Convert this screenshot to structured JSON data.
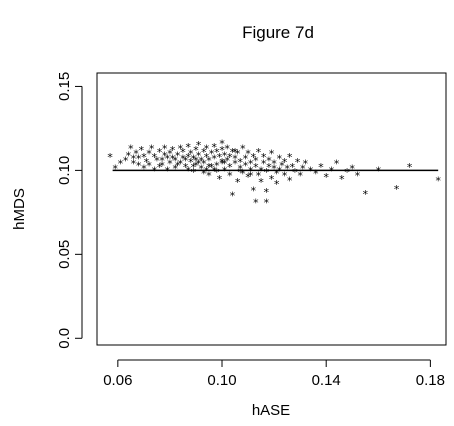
{
  "chart_data": {
    "type": "scatter",
    "title": "Figure 7d",
    "xlabel": "hASE",
    "ylabel": "hMDS",
    "xlim": [
      0.052,
      0.186
    ],
    "ylim": [
      -0.004,
      0.158
    ],
    "xticks": [
      0.06,
      0.1,
      0.14,
      0.18
    ],
    "xtick_labels": [
      "0.06",
      "0.10",
      "0.14",
      "0.18"
    ],
    "yticks": [
      0.0,
      0.05,
      0.1,
      0.15
    ],
    "ytick_labels": [
      "0.0",
      "0.05",
      "0.10",
      "0.15"
    ],
    "marker": "*",
    "grid": false,
    "reference_line": {
      "x": [
        0.058,
        0.183
      ],
      "y": [
        0.1,
        0.1
      ]
    },
    "series": [
      {
        "points": [
          [
            0.057,
            0.108
          ],
          [
            0.059,
            0.101
          ],
          [
            0.061,
            0.104
          ],
          [
            0.063,
            0.106
          ],
          [
            0.064,
            0.109
          ],
          [
            0.065,
            0.113
          ],
          [
            0.066,
            0.104
          ],
          [
            0.067,
            0.11
          ],
          [
            0.068,
            0.107
          ],
          [
            0.069,
            0.112
          ],
          [
            0.07,
            0.108
          ],
          [
            0.071,
            0.105
          ],
          [
            0.072,
            0.11
          ],
          [
            0.073,
            0.113
          ],
          [
            0.074,
            0.1
          ],
          [
            0.074,
            0.108
          ],
          [
            0.075,
            0.106
          ],
          [
            0.076,
            0.111
          ],
          [
            0.077,
            0.103
          ],
          [
            0.078,
            0.109
          ],
          [
            0.078,
            0.113
          ],
          [
            0.079,
            0.107
          ],
          [
            0.08,
            0.104
          ],
          [
            0.08,
            0.11
          ],
          [
            0.081,
            0.112
          ],
          [
            0.082,
            0.106
          ],
          [
            0.082,
            0.101
          ],
          [
            0.083,
            0.109
          ],
          [
            0.084,
            0.113
          ],
          [
            0.084,
            0.104
          ],
          [
            0.085,
            0.107
          ],
          [
            0.085,
            0.111
          ],
          [
            0.086,
            0.102
          ],
          [
            0.087,
            0.108
          ],
          [
            0.087,
            0.114
          ],
          [
            0.088,
            0.105
          ],
          [
            0.088,
            0.11
          ],
          [
            0.089,
            0.099
          ],
          [
            0.089,
            0.107
          ],
          [
            0.09,
            0.112
          ],
          [
            0.09,
            0.103
          ],
          [
            0.091,
            0.115
          ],
          [
            0.091,
            0.109
          ],
          [
            0.092,
            0.106
          ],
          [
            0.092,
            0.101
          ],
          [
            0.093,
            0.111
          ],
          [
            0.093,
            0.104
          ],
          [
            0.094,
            0.108
          ],
          [
            0.094,
            0.113
          ],
          [
            0.095,
            0.097
          ],
          [
            0.095,
            0.106
          ],
          [
            0.096,
            0.11
          ],
          [
            0.096,
            0.102
          ],
          [
            0.097,
            0.114
          ],
          [
            0.097,
            0.107
          ],
          [
            0.098,
            0.103
          ],
          [
            0.098,
            0.111
          ],
          [
            0.099,
            0.095
          ],
          [
            0.099,
            0.108
          ],
          [
            0.1,
            0.105
          ],
          [
            0.1,
            0.112
          ],
          [
            0.1,
            0.116
          ],
          [
            0.101,
            0.1
          ],
          [
            0.101,
            0.109
          ],
          [
            0.102,
            0.106
          ],
          [
            0.102,
            0.113
          ],
          [
            0.103,
            0.102
          ],
          [
            0.103,
            0.108
          ],
          [
            0.104,
            0.085
          ],
          [
            0.104,
            0.111
          ],
          [
            0.105,
            0.104
          ],
          [
            0.105,
            0.107
          ],
          [
            0.106,
            0.093
          ],
          [
            0.106,
            0.11
          ],
          [
            0.107,
            0.101
          ],
          [
            0.107,
            0.105
          ],
          [
            0.108,
            0.113
          ],
          [
            0.108,
            0.098
          ],
          [
            0.109,
            0.107
          ],
          [
            0.109,
            0.103
          ],
          [
            0.11,
            0.11
          ],
          [
            0.11,
            0.096
          ],
          [
            0.111,
            0.104
          ],
          [
            0.111,
            0.1
          ],
          [
            0.112,
            0.108
          ],
          [
            0.112,
            0.088
          ],
          [
            0.113,
            0.102
          ],
          [
            0.113,
            0.106
          ],
          [
            0.114,
            0.097
          ],
          [
            0.114,
            0.111
          ],
          [
            0.115,
            0.1
          ],
          [
            0.115,
            0.093
          ],
          [
            0.116,
            0.104
          ],
          [
            0.116,
            0.108
          ],
          [
            0.117,
            0.099
          ],
          [
            0.117,
            0.087
          ],
          [
            0.118,
            0.102
          ],
          [
            0.118,
            0.106
          ],
          [
            0.119,
            0.095
          ],
          [
            0.119,
            0.11
          ],
          [
            0.12,
            0.101
          ],
          [
            0.12,
            0.104
          ],
          [
            0.121,
            0.098
          ],
          [
            0.121,
            0.092
          ],
          [
            0.122,
            0.107
          ],
          [
            0.122,
            0.1
          ],
          [
            0.123,
            0.103
          ],
          [
            0.124,
            0.097
          ],
          [
            0.124,
            0.105
          ],
          [
            0.125,
            0.101
          ],
          [
            0.126,
            0.094
          ],
          [
            0.126,
            0.108
          ],
          [
            0.127,
            0.102
          ],
          [
            0.128,
            0.099
          ],
          [
            0.129,
            0.105
          ],
          [
            0.13,
            0.097
          ],
          [
            0.131,
            0.101
          ],
          [
            0.132,
            0.104
          ],
          [
            0.134,
            0.1
          ],
          [
            0.136,
            0.098
          ],
          [
            0.138,
            0.102
          ],
          [
            0.14,
            0.096
          ],
          [
            0.142,
            0.1
          ],
          [
            0.144,
            0.104
          ],
          [
            0.146,
            0.095
          ],
          [
            0.148,
            0.099
          ],
          [
            0.15,
            0.101
          ],
          [
            0.152,
            0.097
          ],
          [
            0.155,
            0.086
          ],
          [
            0.16,
            0.1
          ],
          [
            0.167,
            0.089
          ],
          [
            0.172,
            0.102
          ],
          [
            0.183,
            0.094
          ],
          [
            0.113,
            0.081
          ],
          [
            0.117,
            0.081
          ],
          [
            0.1,
            0.104
          ],
          [
            0.098,
            0.099
          ],
          [
            0.095,
            0.102
          ],
          [
            0.093,
            0.098
          ],
          [
            0.091,
            0.104
          ],
          [
            0.089,
            0.102
          ],
          [
            0.087,
            0.1
          ],
          [
            0.086,
            0.106
          ],
          [
            0.083,
            0.103
          ],
          [
            0.081,
            0.107
          ],
          [
            0.079,
            0.1
          ],
          [
            0.077,
            0.106
          ],
          [
            0.076,
            0.102
          ],
          [
            0.072,
            0.103
          ],
          [
            0.07,
            0.101
          ],
          [
            0.068,
            0.103
          ],
          [
            0.066,
            0.107
          ],
          [
            0.097,
            0.1
          ],
          [
            0.103,
            0.097
          ],
          [
            0.107,
            0.099
          ],
          [
            0.111,
            0.097
          ],
          [
            0.105,
            0.111
          ],
          [
            0.101,
            0.104
          ],
          [
            0.094,
            0.1
          ],
          [
            0.09,
            0.106
          ]
        ]
      }
    ]
  }
}
